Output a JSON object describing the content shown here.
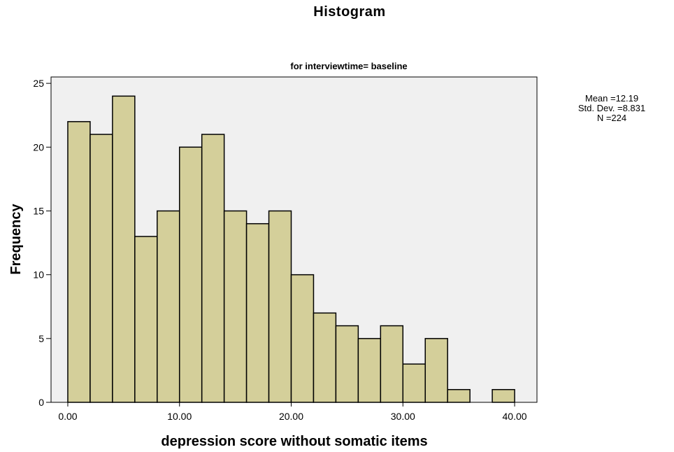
{
  "page": {
    "title": "Histogram"
  },
  "stats": {
    "mean": "Mean =12.19",
    "std": "Std. Dev. =8.831",
    "n": "N =224"
  },
  "chart_data": {
    "type": "bar",
    "title": "Histogram",
    "subtitle": "for interviewtime= baseline",
    "xlabel": "depression score without somatic items",
    "ylabel": "Frequency",
    "bin_width": 2,
    "bins": [
      {
        "start": 0,
        "end": 2,
        "value": 22
      },
      {
        "start": 2,
        "end": 4,
        "value": 21
      },
      {
        "start": 4,
        "end": 6,
        "value": 24
      },
      {
        "start": 6,
        "end": 8,
        "value": 13
      },
      {
        "start": 8,
        "end": 10,
        "value": 15
      },
      {
        "start": 10,
        "end": 12,
        "value": 20
      },
      {
        "start": 12,
        "end": 14,
        "value": 21
      },
      {
        "start": 14,
        "end": 16,
        "value": 15
      },
      {
        "start": 16,
        "end": 18,
        "value": 14
      },
      {
        "start": 18,
        "end": 20,
        "value": 15
      },
      {
        "start": 20,
        "end": 22,
        "value": 10
      },
      {
        "start": 22,
        "end": 24,
        "value": 7
      },
      {
        "start": 24,
        "end": 26,
        "value": 6
      },
      {
        "start": 26,
        "end": 28,
        "value": 5
      },
      {
        "start": 28,
        "end": 30,
        "value": 6
      },
      {
        "start": 30,
        "end": 32,
        "value": 3
      },
      {
        "start": 32,
        "end": 34,
        "value": 5
      },
      {
        "start": 34,
        "end": 36,
        "value": 1
      },
      {
        "start": 36,
        "end": 38,
        "value": 0
      },
      {
        "start": 38,
        "end": 40,
        "value": 1
      }
    ],
    "xlim": [
      -1.5,
      42
    ],
    "ylim": [
      0,
      25.5
    ],
    "x_ticks": [
      0,
      10,
      20,
      30,
      40
    ],
    "x_tick_labels": [
      "0.00",
      "10.00",
      "20.00",
      "30.00",
      "40.00"
    ],
    "y_ticks": [
      0,
      5,
      10,
      15,
      20,
      25
    ],
    "y_tick_labels": [
      "0",
      "5",
      "10",
      "15",
      "20",
      "25"
    ],
    "colors": {
      "bar_fill": "#d4cf9a",
      "bar_stroke": "#000000",
      "plot_background": "#f0f0f0"
    },
    "grid": false
  }
}
